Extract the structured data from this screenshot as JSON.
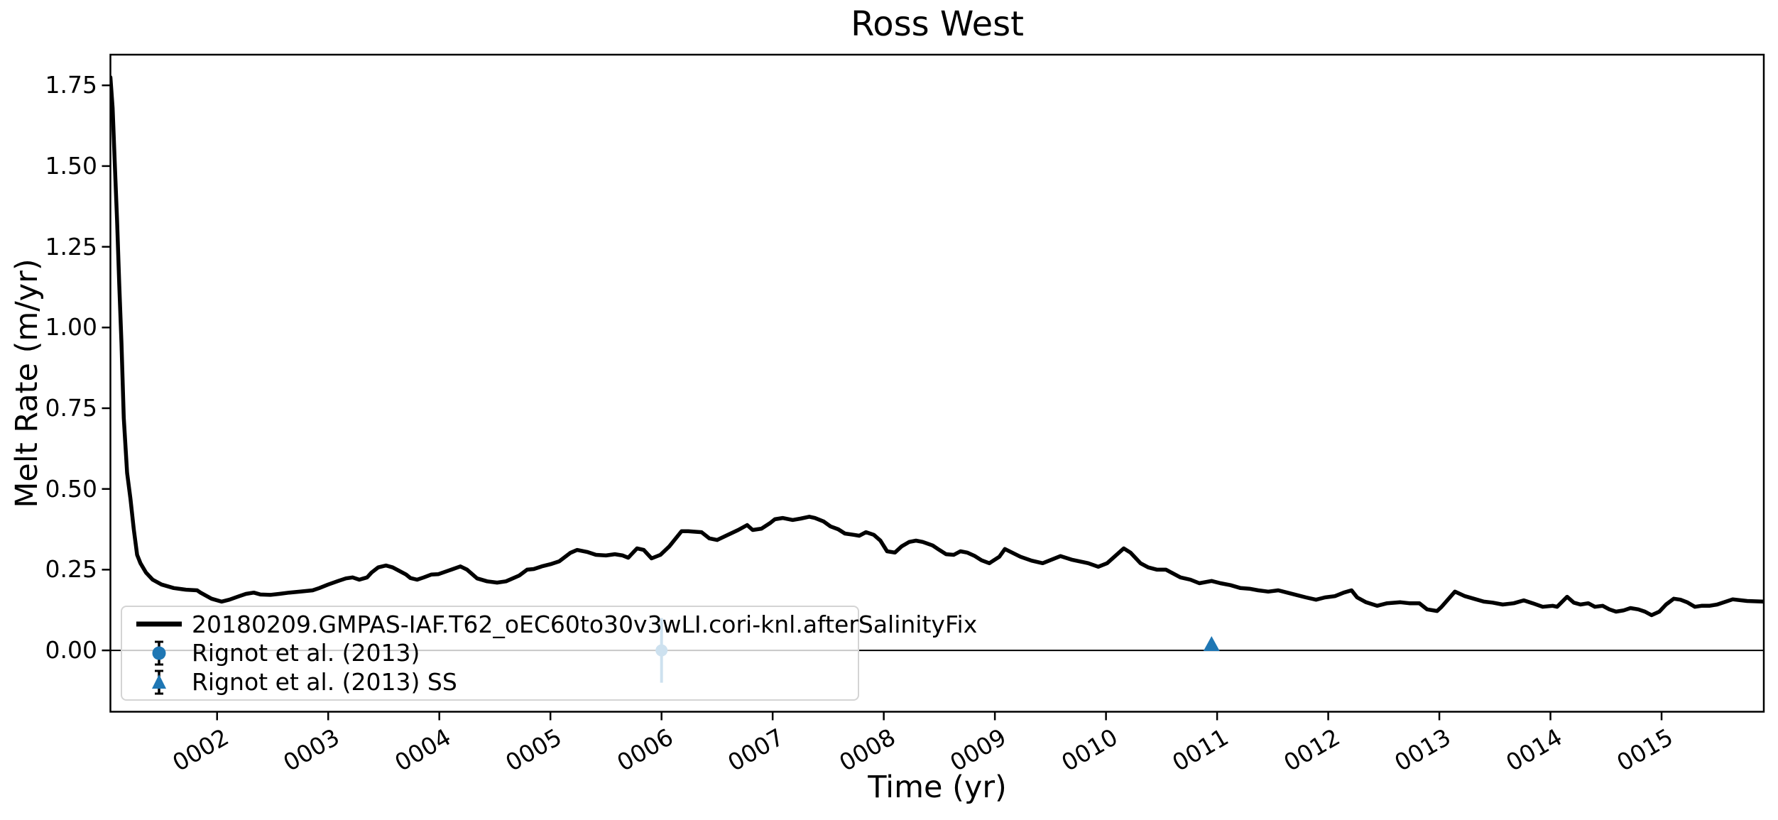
{
  "figure": {
    "title": "Ross West",
    "xlabel": "Time (yr)",
    "ylabel": "Melt Rate (m/yr)"
  },
  "legend": {
    "items": [
      {
        "label": "20180209.GMPAS-IAF.T62_oEC60to30v3wLI.cori-knl.afterSalinityFix",
        "swatch": "thick-black-line"
      },
      {
        "label": "Rignot et al. (2013)",
        "swatch": "blue-circle-errorbar"
      },
      {
        "label": "Rignot et al. (2013) SS",
        "swatch": "blue-triangle-errorbar"
      }
    ]
  },
  "chart_data": {
    "type": "line",
    "title": "Ross West",
    "xlabel": "Time (yr)",
    "ylabel": "Melt Rate (m/yr)",
    "xlim": [
      1.04,
      15.92
    ],
    "ylim": [
      -0.19,
      1.845
    ],
    "grid": false,
    "legend_position": "lower left",
    "colors": {
      "line": "#000000",
      "marker_blue": "#1f77b4",
      "zero_line": "#000000",
      "legend_border": "#d4d4d4"
    },
    "xticks": {
      "values": [
        2,
        3,
        4,
        5,
        6,
        7,
        8,
        9,
        10,
        11,
        12,
        13,
        14,
        15
      ],
      "labels": [
        "0002",
        "0003",
        "0004",
        "0005",
        "0006",
        "0007",
        "0008",
        "0009",
        "0010",
        "0011",
        "0012",
        "0013",
        "0014",
        "0015"
      ],
      "rotation_deg": 30
    },
    "yticks": {
      "values": [
        0.0,
        0.25,
        0.5,
        0.75,
        1.0,
        1.25,
        1.5,
        1.75
      ],
      "labels": [
        "0.00",
        "0.25",
        "0.50",
        "0.75",
        "1.00",
        "1.25",
        "1.50",
        "1.75"
      ]
    },
    "zero_line_y": 0.0,
    "series": [
      {
        "name": "20180209.GMPAS-IAF.T62_oEC60to30v3wLI.cori-knl.afterSalinityFix",
        "type": "line",
        "color": "#000000",
        "x": [
          1.04,
          1.06,
          1.08,
          1.1,
          1.12,
          1.14,
          1.16,
          1.19,
          1.22,
          1.25,
          1.28,
          1.31,
          1.36,
          1.42,
          1.5,
          1.61,
          1.72,
          1.82,
          1.85,
          1.95,
          2.04,
          2.11,
          2.2,
          2.26,
          2.33,
          2.39,
          2.48,
          2.56,
          2.65,
          2.75,
          2.86,
          2.92,
          3.0,
          3.09,
          3.16,
          3.22,
          3.28,
          3.35,
          3.39,
          3.45,
          3.52,
          3.58,
          3.64,
          3.7,
          3.74,
          3.8,
          3.86,
          3.93,
          3.99,
          4.09,
          4.19,
          4.25,
          4.34,
          4.43,
          4.52,
          4.6,
          4.72,
          4.79,
          4.85,
          4.93,
          5.0,
          5.08,
          5.18,
          5.24,
          5.33,
          5.41,
          5.5,
          5.58,
          5.65,
          5.7,
          5.78,
          5.84,
          5.91,
          5.99,
          6.07,
          6.18,
          6.24,
          6.36,
          6.43,
          6.5,
          6.58,
          6.69,
          6.77,
          6.82,
          6.9,
          6.98,
          7.02,
          7.09,
          7.18,
          7.25,
          7.33,
          7.38,
          7.46,
          7.52,
          7.59,
          7.65,
          7.73,
          7.78,
          7.84,
          7.91,
          7.97,
          8.03,
          8.1,
          8.16,
          8.23,
          8.29,
          8.35,
          8.44,
          8.5,
          8.56,
          8.63,
          8.69,
          8.75,
          8.82,
          8.88,
          8.95,
          9.04,
          9.09,
          9.23,
          9.33,
          9.43,
          9.59,
          9.69,
          9.84,
          9.93,
          10.01,
          10.16,
          10.22,
          10.31,
          10.38,
          10.46,
          10.54,
          10.61,
          10.67,
          10.76,
          10.84,
          10.95,
          11.03,
          11.12,
          11.21,
          11.29,
          11.37,
          11.46,
          11.55,
          11.63,
          11.72,
          11.8,
          11.89,
          11.97,
          12.06,
          12.14,
          12.21,
          12.26,
          12.34,
          12.44,
          12.53,
          12.65,
          12.73,
          12.82,
          12.89,
          12.98,
          13.02,
          13.14,
          13.23,
          13.31,
          13.4,
          13.48,
          13.57,
          13.67,
          13.76,
          13.84,
          13.93,
          14.02,
          14.06,
          14.15,
          14.21,
          14.27,
          14.34,
          14.4,
          14.47,
          14.53,
          14.59,
          14.66,
          14.72,
          14.79,
          14.85,
          14.91,
          14.98,
          15.04,
          15.11,
          15.17,
          15.23,
          15.3,
          15.36,
          15.43,
          15.5,
          15.64,
          15.77,
          15.92
        ],
        "y": [
          1.775,
          1.68,
          1.5,
          1.33,
          1.13,
          0.95,
          0.72,
          0.55,
          0.47,
          0.375,
          0.296,
          0.27,
          0.241,
          0.219,
          0.204,
          0.193,
          0.188,
          0.186,
          0.179,
          0.16,
          0.151,
          0.157,
          0.168,
          0.175,
          0.179,
          0.173,
          0.172,
          0.175,
          0.179,
          0.182,
          0.186,
          0.193,
          0.204,
          0.215,
          0.223,
          0.226,
          0.219,
          0.226,
          0.241,
          0.257,
          0.263,
          0.257,
          0.246,
          0.235,
          0.224,
          0.219,
          0.226,
          0.235,
          0.236,
          0.248,
          0.26,
          0.25,
          0.223,
          0.214,
          0.21,
          0.214,
          0.232,
          0.25,
          0.252,
          0.261,
          0.267,
          0.276,
          0.302,
          0.311,
          0.305,
          0.296,
          0.294,
          0.298,
          0.294,
          0.287,
          0.316,
          0.311,
          0.285,
          0.296,
          0.322,
          0.369,
          0.369,
          0.366,
          0.347,
          0.342,
          0.355,
          0.373,
          0.388,
          0.373,
          0.377,
          0.395,
          0.406,
          0.41,
          0.404,
          0.408,
          0.414,
          0.41,
          0.399,
          0.384,
          0.375,
          0.362,
          0.358,
          0.355,
          0.366,
          0.358,
          0.34,
          0.307,
          0.303,
          0.322,
          0.336,
          0.34,
          0.336,
          0.325,
          0.311,
          0.298,
          0.296,
          0.307,
          0.303,
          0.292,
          0.279,
          0.27,
          0.29,
          0.314,
          0.29,
          0.278,
          0.27,
          0.292,
          0.281,
          0.27,
          0.259,
          0.27,
          0.316,
          0.303,
          0.27,
          0.257,
          0.25,
          0.25,
          0.237,
          0.226,
          0.219,
          0.208,
          0.215,
          0.208,
          0.202,
          0.193,
          0.191,
          0.186,
          0.182,
          0.186,
          0.179,
          0.171,
          0.164,
          0.157,
          0.164,
          0.168,
          0.179,
          0.186,
          0.164,
          0.149,
          0.138,
          0.146,
          0.149,
          0.146,
          0.146,
          0.127,
          0.122,
          0.135,
          0.182,
          0.168,
          0.16,
          0.151,
          0.148,
          0.142,
          0.146,
          0.155,
          0.146,
          0.135,
          0.138,
          0.135,
          0.166,
          0.148,
          0.142,
          0.146,
          0.135,
          0.138,
          0.127,
          0.12,
          0.124,
          0.131,
          0.127,
          0.12,
          0.109,
          0.12,
          0.142,
          0.16,
          0.157,
          0.149,
          0.135,
          0.138,
          0.138,
          0.142,
          0.158,
          0.153,
          0.151
        ]
      },
      {
        "name": "Rignot et al. (2013)",
        "type": "scatter-errorbar",
        "marker": "circle",
        "color": "#1f77b4",
        "x": [
          6.0
        ],
        "y": [
          0.0
        ],
        "yerr": [
          0.1
        ]
      },
      {
        "name": "Rignot et al. (2013) SS",
        "type": "scatter-errorbar",
        "marker": "triangle",
        "color": "#1f77b4",
        "x": [
          10.95
        ],
        "y": [
          0.02
        ],
        "yerr": [
          0.02
        ]
      }
    ]
  }
}
